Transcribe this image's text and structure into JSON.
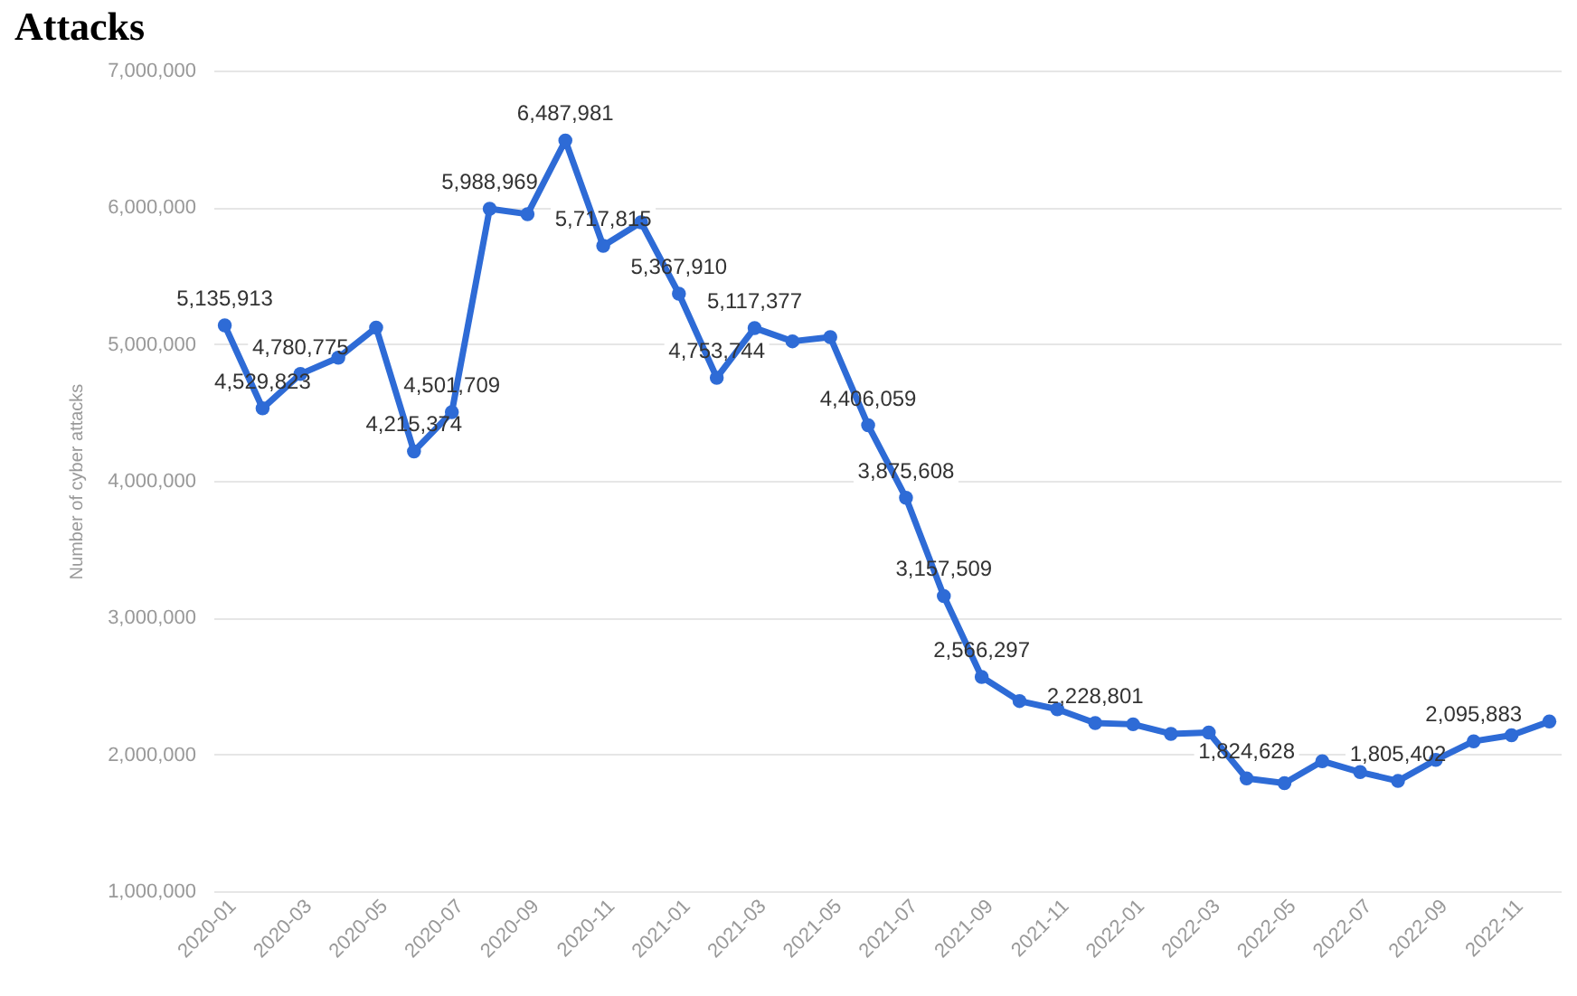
{
  "chart_data": {
    "type": "line",
    "title": "Attacks",
    "ylabel": "Number of cyber attacks",
    "categories": [
      "2020-01",
      null,
      "2020-03",
      null,
      "2020-05",
      null,
      "2020-07",
      null,
      "2020-09",
      null,
      "2020-11",
      null,
      "2021-01",
      null,
      "2021-03",
      null,
      "2021-05",
      null,
      "2021-07",
      null,
      "2021-09",
      null,
      "2021-11",
      null,
      "2022-01",
      null,
      "2022-03",
      null,
      "2022-05",
      null,
      "2022-07",
      null,
      "2022-09",
      null,
      "2022-11",
      null
    ],
    "series": [
      {
        "color": "#2e6bd6",
        "values": [
          5135913,
          4529823,
          4780775,
          4900000,
          5120000,
          4215374,
          4501709,
          5988969,
          5950000,
          6487981,
          5717815,
          5890000,
          5367910,
          4753744,
          5117377,
          5020000,
          5050000,
          4406059,
          3875608,
          3157509,
          2566297,
          2390000,
          2330000,
          2228801,
          2220000,
          2150000,
          2160000,
          1824628,
          1790000,
          1950000,
          1870000,
          1805402,
          1960000,
          2095883,
          2140000,
          2240000
        ],
        "value_labels": [
          "5,135,913",
          "4,529,823",
          "4,780,775",
          null,
          null,
          "4,215,374",
          "4,501,709",
          "5,988,969",
          null,
          "6,487,981",
          "5,717,815",
          null,
          "5,367,910",
          "4,753,744",
          "5,117,377",
          null,
          null,
          "4,406,059",
          "3,875,608",
          "3,157,509",
          "2,566,297",
          null,
          null,
          "2,228,801",
          null,
          null,
          null,
          "1,824,628",
          null,
          null,
          null,
          "1,805,402",
          null,
          "2,095,883",
          null,
          null
        ]
      }
    ],
    "ylim": [
      1000000,
      7000000
    ],
    "yticks": [
      {
        "value": 1000000,
        "label": "1,000,000"
      },
      {
        "value": 2000000,
        "label": "2,000,000"
      },
      {
        "value": 3000000,
        "label": "3,000,000"
      },
      {
        "value": 4000000,
        "label": "4,000,000"
      },
      {
        "value": 5000000,
        "label": "5,000,000"
      },
      {
        "value": 6000000,
        "label": "6,000,000"
      },
      {
        "value": 7000000,
        "label": "7,000,000"
      }
    ],
    "grid": "y",
    "marker": "circle",
    "line_style": "solid",
    "legend": false
  }
}
